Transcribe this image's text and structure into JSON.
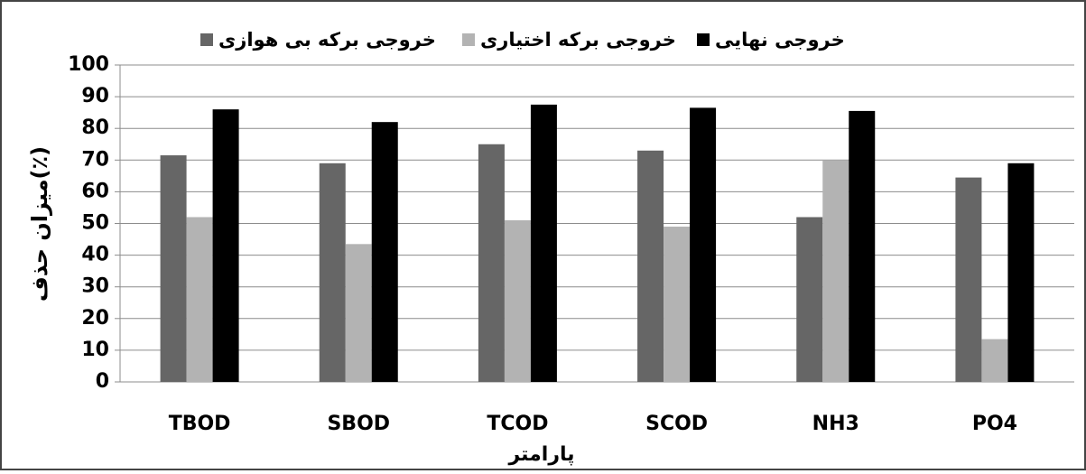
{
  "chart_data": {
    "type": "bar",
    "categories": [
      "TBOD",
      "SBOD",
      "TCOD",
      "SCOD",
      "NH3",
      "PO4"
    ],
    "series": [
      {
        "name": "خروجی برکه بی هوازی",
        "color": "#666666",
        "values": [
          71.5,
          69,
          75,
          73,
          52,
          64.5
        ]
      },
      {
        "name": "خروجی برکه اختیاری",
        "color": "#b3b3b3",
        "values": [
          52,
          43.5,
          51,
          49,
          70,
          13.5
        ]
      },
      {
        "name": "خروجی نهایی",
        "color": "#000000",
        "values": [
          86,
          82,
          87.5,
          86.5,
          85.5,
          69
        ]
      }
    ],
    "xlabel": "پارامتر",
    "ylabel": "میزان حذف(٪)",
    "ylim": [
      0,
      100
    ],
    "yticks": [
      0,
      10,
      20,
      30,
      40,
      50,
      60,
      70,
      80,
      90,
      100
    ],
    "grid": true,
    "legend": "top"
  }
}
